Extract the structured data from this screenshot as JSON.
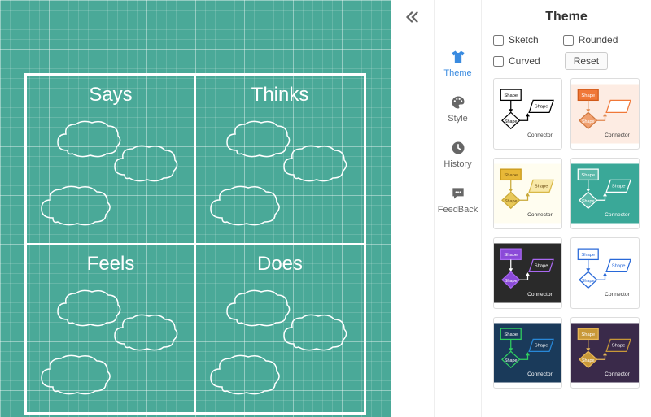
{
  "canvas": {
    "background_color": "#4aa998",
    "empathy_map": {
      "quadrants": [
        {
          "label": "Says"
        },
        {
          "label": "Thinks"
        },
        {
          "label": "Feels"
        },
        {
          "label": "Does"
        }
      ]
    }
  },
  "sidebar": {
    "collapse_icon": "collapse-left",
    "tabs": [
      {
        "label": "Theme",
        "icon": "tshirt",
        "active": true
      },
      {
        "label": "Style",
        "icon": "palette",
        "active": false
      },
      {
        "label": "History",
        "icon": "clock",
        "active": false
      },
      {
        "label": "FeedBack",
        "icon": "comment",
        "active": false
      }
    ]
  },
  "theme_panel": {
    "title": "Theme",
    "checkboxes": [
      {
        "label": "Sketch",
        "checked": false
      },
      {
        "label": "Rounded",
        "checked": false
      },
      {
        "label": "Curved",
        "checked": false
      }
    ],
    "reset_label": "Reset",
    "shape_label": "Shape",
    "connector_label": "Connector",
    "themes": [
      {
        "bg": "#ffffff",
        "shape_fill": "#ffffff",
        "shape_stroke": "#000000",
        "diamond_fill": "#ffffff",
        "diamond_stroke": "#000000",
        "rhombus_fill": "#ffffff",
        "rhombus_stroke": "#000000",
        "text_color": "#000000",
        "line_color": "#000000",
        "label_bg": "#ffffff",
        "label_text": "#000000"
      },
      {
        "bg": "#fdece3",
        "shape_fill": "#f07838",
        "shape_stroke": "#d05a1a",
        "diamond_fill": "#f0a070",
        "diamond_stroke": "#d07840",
        "rhombus_fill": "#ffffff",
        "rhombus_stroke": "#f07838",
        "text_color": "#ffffff",
        "line_color": "#e08850",
        "label_bg": "#f07838",
        "label_text": "#ffffff"
      },
      {
        "bg": "#fffdf0",
        "shape_fill": "#e8b838",
        "shape_stroke": "#c89818",
        "diamond_fill": "#e8c858",
        "diamond_stroke": "#c8a838",
        "rhombus_fill": "#f8e8a8",
        "rhombus_stroke": "#d8b848",
        "text_color": "#6a4a10",
        "line_color": "#c8a838",
        "label_bg": "#e8b838",
        "label_text": "#6a4a10"
      },
      {
        "bg": "#3aa898",
        "shape_fill": "#5ab8a8",
        "shape_stroke": "#ffffff",
        "diamond_fill": "#5ab8a8",
        "diamond_stroke": "#ffffff",
        "rhombus_fill": "#3aa898",
        "rhombus_stroke": "#ffffff",
        "text_color": "#ffffff",
        "line_color": "#ffffff",
        "label_bg": "#5ab8a8",
        "label_text": "#ffffff"
      },
      {
        "bg": "#2a2a2a",
        "shape_fill": "#8a4ad8",
        "shape_stroke": "#a868f0",
        "diamond_fill": "#8a4ad8",
        "diamond_stroke": "#a868f0",
        "rhombus_fill": "#2a2a2a",
        "rhombus_stroke": "#a868f0",
        "text_color": "#ffffff",
        "line_color": "#ffffff",
        "label_bg": "#8a4ad8",
        "label_text": "#ffffff"
      },
      {
        "bg": "#ffffff",
        "shape_fill": "#ffffff",
        "shape_stroke": "#2868d8",
        "diamond_fill": "#ffffff",
        "diamond_stroke": "#2868d8",
        "rhombus_fill": "#ffffff",
        "rhombus_stroke": "#2868d8",
        "text_color": "#2868d8",
        "line_color": "#2868d8",
        "label_bg": "#ffffff",
        "label_text": "#2868d8"
      },
      {
        "bg": "#1a3a5a",
        "shape_fill": "#1a3a5a",
        "shape_stroke": "#30d060",
        "diamond_fill": "#1a3a5a",
        "diamond_stroke": "#30d060",
        "rhombus_fill": "#1a3a5a",
        "rhombus_stroke": "#2888d8",
        "text_color": "#ffffff",
        "line_color": "#30d060",
        "label_bg": "#1a3a5a",
        "label_text": "#ffffff"
      },
      {
        "bg": "#3a2a4a",
        "shape_fill": "#c89838",
        "shape_stroke": "#e8b858",
        "diamond_fill": "#c89838",
        "diamond_stroke": "#e8b858",
        "rhombus_fill": "#3a2a4a",
        "rhombus_stroke": "#c89838",
        "text_color": "#ffffff",
        "line_color": "#e8b858",
        "label_bg": "#c89838",
        "label_text": "#ffffff"
      }
    ]
  }
}
